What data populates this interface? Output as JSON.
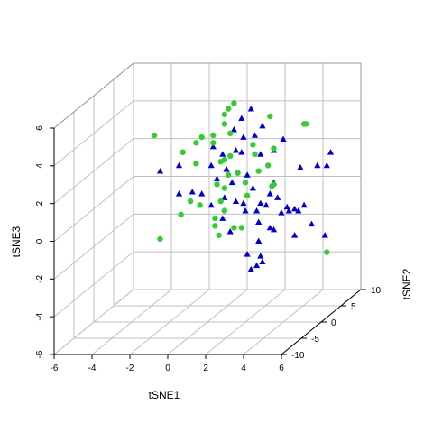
{
  "chart_data": {
    "type": "scatter",
    "title": "",
    "xlabel": "tSNE1",
    "ylabel": "tSNE2",
    "zlabel": "tSNE3",
    "xlim": [
      -6,
      6
    ],
    "ylim": [
      -10,
      10
    ],
    "zlim": [
      -6,
      6
    ],
    "x_ticks": [
      "-6",
      "-4",
      "-2",
      "0",
      "2",
      "4",
      "6"
    ],
    "y_ticks": [
      "-10",
      "-5",
      "0",
      "5",
      "10"
    ],
    "z_ticks": [
      "-6",
      "-4",
      "-2",
      "0",
      "2",
      "4",
      "6"
    ],
    "grid": true,
    "view": "3d-perspective",
    "series": [
      {
        "marker": "triangle",
        "color": "#0000CD",
        "points": [
          [
            1.8,
            0,
            4.8
          ],
          [
            2.3,
            0,
            5.3
          ],
          [
            1.4,
            0,
            4.2
          ],
          [
            2.9,
            0,
            4.4
          ],
          [
            2.5,
            0,
            3.9
          ],
          [
            4.0,
            0,
            3.7
          ],
          [
            1.8,
            0,
            3.0
          ],
          [
            1.5,
            0,
            3.1
          ],
          [
            2.8,
            0,
            2.9
          ],
          [
            3.5,
            0,
            3.1
          ],
          [
            6.5,
            0,
            3.0
          ],
          [
            -1.5,
            0,
            2.3
          ],
          [
            0.2,
            0,
            2.3
          ],
          [
            1.0,
            0,
            2.1
          ],
          [
            4.9,
            0,
            2.2
          ],
          [
            5.8,
            0,
            2.3
          ],
          [
            6.3,
            0,
            2.3
          ],
          [
            -2.5,
            0,
            2.0
          ],
          [
            -0.3,
            0,
            0.8
          ],
          [
            3.5,
            0,
            1.4
          ],
          [
            0.5,
            0,
            1.6
          ],
          [
            1.3,
            0,
            1.4
          ],
          [
            -1.5,
            0,
            0.8
          ],
          [
            -0.8,
            0,
            0.9
          ],
          [
            0.9,
            0,
            0.6
          ],
          [
            1.5,
            0,
            0.4
          ],
          [
            2.4,
            0,
            1.1
          ],
          [
            3.3,
            0,
            0.8
          ],
          [
            3.7,
            0,
            0.6
          ],
          [
            5.1,
            0,
            0.2
          ],
          [
            0.2,
            0,
            0.2
          ],
          [
            1.9,
            0,
            0.3
          ],
          [
            2.8,
            0,
            0.3
          ],
          [
            3.1,
            0,
            0.2
          ],
          [
            2.6,
            0,
            -0.1
          ],
          [
            4.2,
            0,
            0.1
          ],
          [
            4.6,
            0,
            0.0
          ],
          [
            4.3,
            0,
            -0.1
          ],
          [
            4.8,
            0,
            -0.1
          ],
          [
            2.0,
            0,
            -0.1
          ],
          [
            3.9,
            0,
            -0.2
          ],
          [
            0.8,
            0,
            -0.5
          ],
          [
            2.7,
            0,
            -0.7
          ],
          [
            3.3,
            0,
            -1.0
          ],
          [
            3.5,
            0,
            -1.1
          ],
          [
            1.2,
            0,
            -1.2
          ],
          [
            5.5,
            0,
            -0.8
          ],
          [
            4.6,
            0,
            -1.4
          ],
          [
            6.2,
            0,
            -1.4
          ],
          [
            2.7,
            0,
            -1.7
          ],
          [
            2.1,
            0,
            -2.4
          ],
          [
            2.8,
            0,
            -2.5
          ],
          [
            2.6,
            0,
            -3.0
          ],
          [
            2.3,
            0,
            -3.2
          ],
          [
            2.9,
            0,
            -2.8
          ],
          [
            1.9,
            0,
            3.8
          ],
          [
            0.8,
            0,
            2.9
          ],
          [
            2.1,
            0,
            1.8
          ],
          [
            0.3,
            0,
            3.3
          ]
        ]
      },
      {
        "marker": "circle",
        "color": "#33CC33",
        "points": [
          [
            1.4,
            0,
            5.6
          ],
          [
            0.9,
            0,
            5.0
          ],
          [
            1.1,
            0,
            5.3
          ],
          [
            0.9,
            0,
            4.5
          ],
          [
            3.3,
            0,
            4.9
          ],
          [
            5.2,
            0,
            4.5
          ],
          [
            5.1,
            0,
            4.5
          ],
          [
            -2.8,
            0,
            3.9
          ],
          [
            0.3,
            0,
            3.9
          ],
          [
            -0.3,
            0,
            3.8
          ],
          [
            -0.6,
            0,
            3.5
          ],
          [
            0.3,
            0,
            3.5
          ],
          [
            2.4,
            0,
            3.4
          ],
          [
            3.5,
            0,
            3.2
          ],
          [
            -1.3,
            0,
            3.0
          ],
          [
            2.5,
            0,
            2.9
          ],
          [
            0.9,
            0,
            2.6
          ],
          [
            1.2,
            0,
            2.8
          ],
          [
            3.2,
            0,
            2.3
          ],
          [
            0.7,
            0,
            2.5
          ],
          [
            2.7,
            0,
            2.0
          ],
          [
            1.6,
            0,
            1.9
          ],
          [
            1.1,
            0,
            1.8
          ],
          [
            2.0,
            0,
            1.4
          ],
          [
            0.5,
            0,
            1.3
          ],
          [
            0.9,
            0,
            1.1
          ],
          [
            3.5,
            0,
            1.3
          ],
          [
            3.4,
            0,
            1.2
          ],
          [
            0.7,
            0,
            0.4
          ],
          [
            -0.9,
            0,
            0.4
          ],
          [
            -0.4,
            0,
            0.2
          ],
          [
            0.9,
            0,
            -0.1
          ],
          [
            0.4,
            0,
            -0.5
          ],
          [
            -1.4,
            0,
            -0.3
          ],
          [
            0.4,
            0,
            -0.9
          ],
          [
            1.8,
            0,
            -1.0
          ],
          [
            1.4,
            0,
            -1.0
          ],
          [
            0.6,
            0,
            -1.4
          ],
          [
            -2.5,
            0,
            -1.6
          ],
          [
            6.3,
            0,
            -2.3
          ],
          [
            1.2,
            0,
            4.0
          ],
          [
            -0.6,
            0,
            2.4
          ],
          [
            2.1,
            0,
            0.7
          ]
        ]
      }
    ]
  }
}
